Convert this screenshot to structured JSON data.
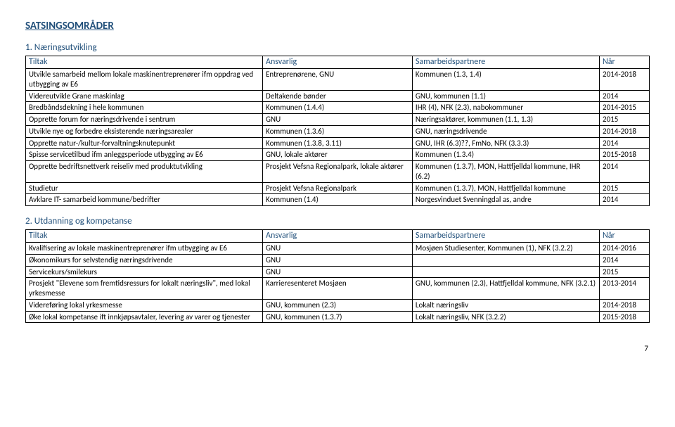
{
  "pageTitle": "SATSINGSOMRÅDER",
  "section1": {
    "title": "1. Næringsutvikling",
    "headers": {
      "c1": "Tiltak",
      "c2": "Ansvarlig",
      "c3": "Samarbeidspartnere",
      "c4": "Når"
    },
    "rows": [
      {
        "c1": "Utvikle samarbeid mellom lokale maskinentreprenører ifm oppdrag ved utbygging av E6",
        "c2": "Entreprenørene, GNU",
        "c3": "Kommunen (1.3, 1.4)",
        "c4": "2014-2018"
      },
      {
        "c1": "Videreutvikle Grane maskinlag",
        "c2": "Deltakende bønder",
        "c3": "GNU, kommunen (1.1)",
        "c4": "2014"
      },
      {
        "c1": "Bredbåndsdekning i hele kommunen",
        "c2": "Kommunen (1.4.4)",
        "c3": "IHR (4), NFK (2.3), nabokommuner",
        "c4": "2014-2015"
      },
      {
        "c1": "Opprette forum for næringsdrivende i sentrum",
        "c2": "GNU",
        "c3": "Næringsaktører, kommunen (1.1, 1.3)",
        "c4": "2015"
      },
      {
        "c1": "Utvikle nye og forbedre eksisterende næringsarealer",
        "c2": "Kommunen (1.3.6)",
        "c3": "GNU, næringsdrivende",
        "c4": "2014-2018"
      },
      {
        "c1": "Opprette natur-/kultur-forvaltningsknutepunkt",
        "c2": "Kommunen (1.3.8, 3.11)",
        "c3": "GNU, IHR (6.3)??, FmNo, NFK (3.3.3)",
        "c4": "2014"
      },
      {
        "c1": "Spisse servicetilbud ifm anleggsperiode utbygging av E6",
        "c2": "GNU, lokale aktører",
        "c3": "Kommunen (1.3.4)",
        "c4": "2015-2018"
      },
      {
        "c1": "Opprette bedriftsnettverk reiseliv med produktutvikling",
        "c2": "Prosjekt Vefsna Regionalpark, lokale aktører",
        "c3": "Kommunen (1.3.7), MON, Hattfjelldal kommune, IHR (6.2)",
        "c4": "2014"
      },
      {
        "c1": "Studietur",
        "c2": "Prosjekt Vefsna Regionalpark",
        "c3": "Kommunen (1.3.7), MON, Hattfjelldal kommune",
        "c4": "2015"
      },
      {
        "c1": "Avklare IT- samarbeid kommune/bedrifter",
        "c2": "Kommunen (1.4)",
        "c3": "Norgesvinduet Svenningdal as, andre",
        "c4": "2014"
      }
    ]
  },
  "section2": {
    "title": "2. Utdanning og kompetanse",
    "headers": {
      "c1": "Tiltak",
      "c2": "Ansvarlig",
      "c3": "Samarbeidspartnere",
      "c4": "Når"
    },
    "rows": [
      {
        "c1": "Kvalifisering av lokale maskinentreprenører ifm utbygging av E6",
        "c2": "GNU",
        "c3": "Mosjøen Studiesenter, Kommunen (1), NFK (3.2.2)",
        "c4": "2014-2016"
      },
      {
        "c1": "Økonomikurs for selvstendig næringsdrivende",
        "c2": "GNU",
        "c3": "",
        "c4": "2014"
      },
      {
        "c1": "Servicekurs/smilekurs",
        "c2": "GNU",
        "c3": "",
        "c4": "2015"
      },
      {
        "c1": "Prosjekt \"Elevene som fremtidsressurs for lokalt næringsliv\", med lokal yrkesmesse",
        "c2": "Karrieresenteret Mosjøen",
        "c3": "GNU, kommunen (2.3), Hattfjelldal kommune, NFK (3.2.1)",
        "c4": "2013-2014"
      },
      {
        "c1": "Videreføring lokal yrkesmesse",
        "c2": "GNU, kommunen (2.3)",
        "c3": "Lokalt næringsliv",
        "c4": "2014-2018"
      },
      {
        "c1": "Øke lokal kompetanse ift innkjøpsavtaler, levering av varer og tjenester",
        "c2": "GNU, kommunen (1.3.7)",
        "c3": "Lokalt næringsliv, NFK (3.2.2)",
        "c4": "2015-2018"
      }
    ]
  },
  "pageNumber": "7"
}
